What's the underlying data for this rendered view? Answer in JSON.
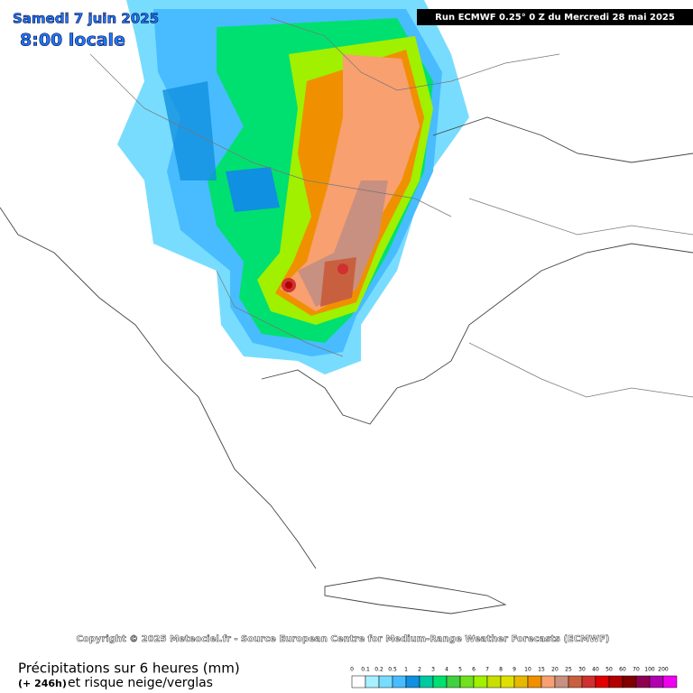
{
  "header": {
    "date": "Samedi 7 juin 2025",
    "time": "8:00 locale",
    "run": "Run ECMWF 0.25° 0 Z du Mercredi 28 mai 2025"
  },
  "copyright": "Copyright © 2025 Meteociel.fr - Source European Centre for Medium-Range Weather Forecasts (ECMWF)",
  "footer": {
    "title": "Précipitations sur 6 heures (mm)",
    "lead": "(+ 246h)",
    "subtitle": "et risque neige/verglas"
  },
  "legend": {
    "items": [
      {
        "label": "0",
        "color": "#ffffff"
      },
      {
        "label": "0.1",
        "color": "#a8f0ff"
      },
      {
        "label": "0.2",
        "color": "#78dcff"
      },
      {
        "label": "0.5",
        "color": "#48bcff"
      },
      {
        "label": "1",
        "color": "#1090e0"
      },
      {
        "label": "2",
        "color": "#00c8a0"
      },
      {
        "label": "3",
        "color": "#00e070"
      },
      {
        "label": "4",
        "color": "#40d040"
      },
      {
        "label": "5",
        "color": "#70e020"
      },
      {
        "label": "6",
        "color": "#a0f000"
      },
      {
        "label": "7",
        "color": "#c8e000"
      },
      {
        "label": "8",
        "color": "#e0e000"
      },
      {
        "label": "9",
        "color": "#e8b800"
      },
      {
        "label": "10",
        "color": "#f09000"
      },
      {
        "label": "15",
        "color": "#f8a070"
      },
      {
        "label": "20",
        "color": "#c89080"
      },
      {
        "label": "25",
        "color": "#c86040"
      },
      {
        "label": "30",
        "color": "#d03030"
      },
      {
        "label": "40",
        "color": "#e00000"
      },
      {
        "label": "50",
        "color": "#b00000"
      },
      {
        "label": "60",
        "color": "#800000"
      },
      {
        "label": "70",
        "color": "#900050"
      },
      {
        "label": "100",
        "color": "#b000b0"
      },
      {
        "label": "200",
        "color": "#f000f0"
      }
    ]
  }
}
